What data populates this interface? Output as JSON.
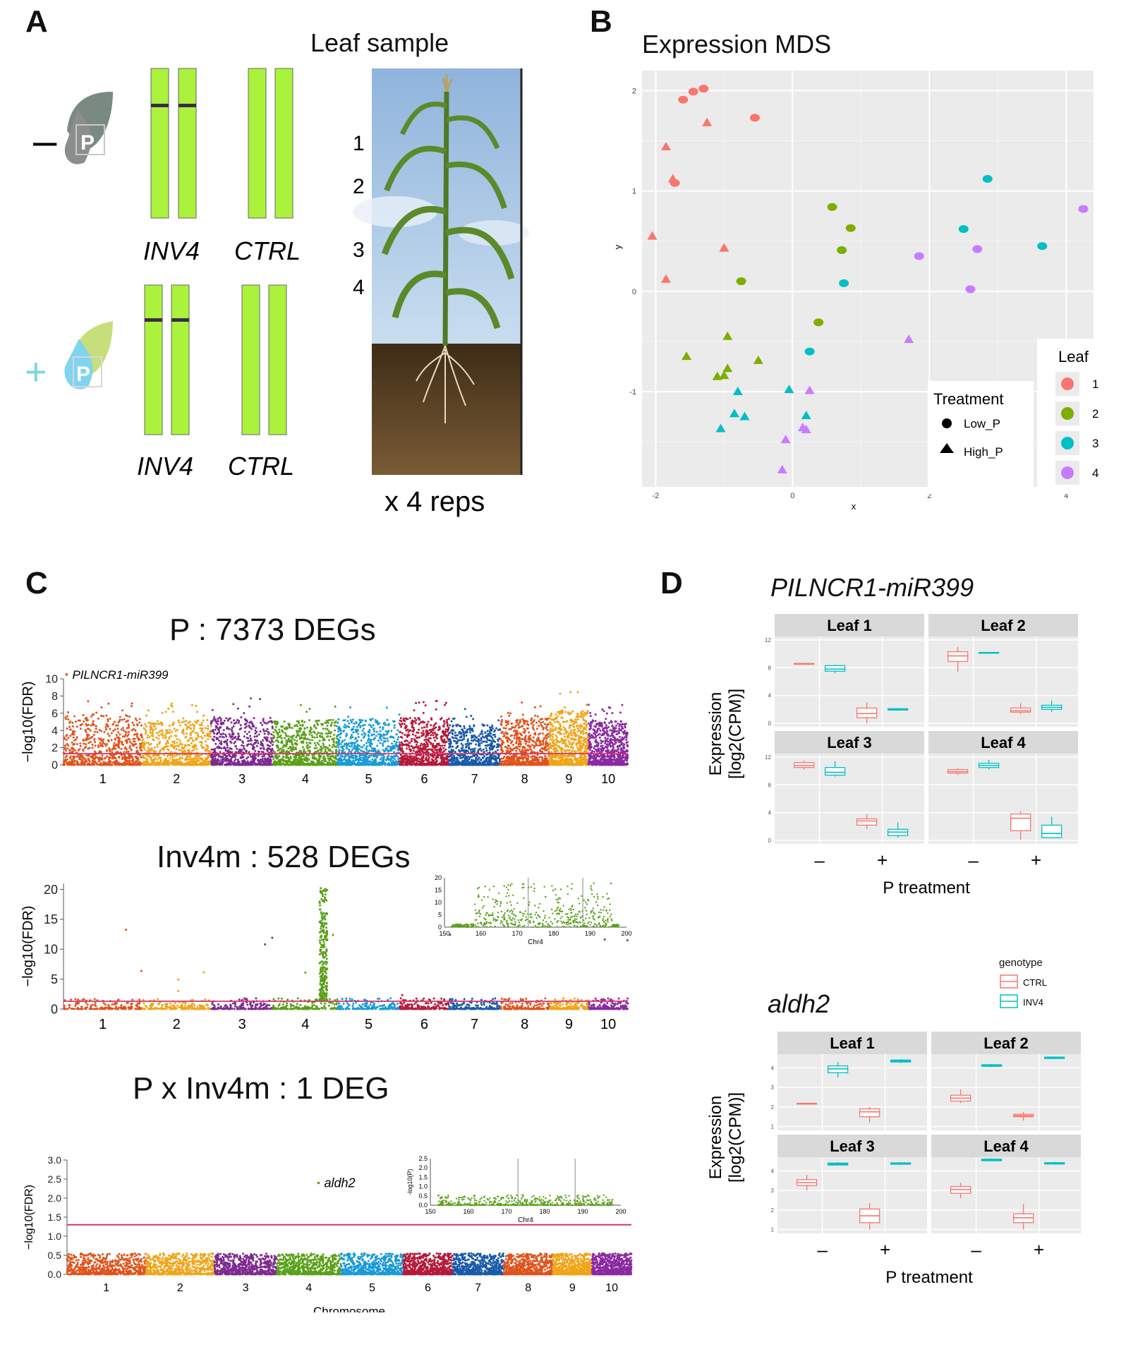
{
  "panelA": {
    "letter": "A",
    "title": "Leaf sample",
    "minus_sign": "–",
    "plus_sign": "+",
    "p_symbol": "P",
    "genotypes_top": [
      "INV4",
      "CTRL"
    ],
    "genotypes_bottom": [
      "INV4",
      "CTRL"
    ],
    "leaf_numbers": [
      "1",
      "2",
      "3",
      "4"
    ],
    "reps": "x 4 reps",
    "colors": {
      "chrom": "#aaf23c",
      "band": "#3a2d4a",
      "sky": "#a9c8e6",
      "soil": "#5a4326",
      "plant": "#4f7a25"
    }
  },
  "panelB": {
    "letter": "B",
    "title": "Expression MDS",
    "xlabel": "x",
    "ylabel": "y",
    "treatment_legend": {
      "title": "Treatment",
      "items": [
        "Low_P",
        "High_P"
      ]
    },
    "leaf_legend": {
      "title": "Leaf",
      "items": [
        "1",
        "2",
        "3",
        "4"
      ]
    },
    "leaf_colors": [
      "#f8766d",
      "#7cae00",
      "#00bfc4",
      "#c77cff"
    ]
  },
  "panelC": {
    "letter": "C",
    "plots": [
      {
        "title": "P :  7373 DEGs",
        "ylabel": "−log10(FDR)",
        "annotation": "PILNCR1-miR399"
      },
      {
        "title": "Inv4m : 528 DEGs",
        "ylabel": "−log10(FDR)",
        "inset_xlabel": "Chr4"
      },
      {
        "title": "P x Inv4m : 1 DEG",
        "ylabel": "−log10(FDR)",
        "annotation": "aldh2",
        "inset_xlabel": "Chr4",
        "inset_ylabel": "-log10(P)",
        "xlabel": "Chromosome"
      }
    ],
    "chrom_colors": [
      "#e0531c",
      "#f0a418",
      "#7d2a8e",
      "#5aa01a",
      "#1a9ad6",
      "#b41a3a",
      "#1a5aa8",
      "#e0531c",
      "#f0a418",
      "#8a2aa0"
    ],
    "threshold_color": "#d6336c"
  },
  "panelD": {
    "letter": "D",
    "gene1": "PILNCR1-miR399",
    "gene2": "aldh2",
    "facets": [
      "Leaf 1",
      "Leaf 2",
      "Leaf 3",
      "Leaf 4"
    ],
    "ylabel_line1": "Expression",
    "ylabel_line2": "[log2(CPM)]",
    "xlabel": "P treatment",
    "x_ticks": [
      "–",
      "+"
    ],
    "legend": {
      "title": "genotype",
      "items": [
        "CTRL",
        "INV4"
      ]
    },
    "genotype_colors": [
      "#f8766d",
      "#00bfc4"
    ]
  },
  "chart_data": [
    {
      "type": "scatter",
      "title": "Expression MDS",
      "xlabel": "x",
      "ylabel": "y",
      "xlim": [
        -2.2,
        4.4
      ],
      "ylim": [
        -1.95,
        2.2
      ],
      "x_ticks": [
        -2,
        0,
        2,
        4
      ],
      "y_ticks": [
        -1,
        0,
        1,
        2
      ],
      "grid": true,
      "legend": "right",
      "series": [
        {
          "name": "1",
          "treatment": "Low_P",
          "x": [
            -1.6,
            -1.45,
            -1.3,
            -0.55,
            -1.72
          ],
          "y": [
            1.91,
            1.99,
            2.02,
            1.73,
            1.08
          ]
        },
        {
          "name": "1",
          "treatment": "High_P",
          "x": [
            -1.25,
            -1.85,
            -1.75,
            -2.05,
            -1.0,
            -1.85
          ],
          "y": [
            1.68,
            1.44,
            1.12,
            0.55,
            0.43,
            0.12
          ]
        },
        {
          "name": "2",
          "treatment": "Low_P",
          "x": [
            0.58,
            0.85,
            0.72,
            -0.75,
            0.38
          ],
          "y": [
            0.84,
            0.63,
            0.41,
            0.1,
            -0.31
          ]
        },
        {
          "name": "2",
          "treatment": "High_P",
          "x": [
            -0.95,
            -1.55,
            -0.5,
            -0.95,
            -1.1,
            -1.0
          ],
          "y": [
            -0.45,
            -0.65,
            -0.69,
            -0.77,
            -0.85,
            -0.84
          ]
        },
        {
          "name": "3",
          "treatment": "Low_P",
          "x": [
            2.85,
            2.5,
            3.65,
            0.75,
            0.25
          ],
          "y": [
            1.12,
            0.62,
            0.45,
            0.08,
            -0.6
          ]
        },
        {
          "name": "3",
          "treatment": "High_P",
          "x": [
            -0.8,
            -0.05,
            -1.05,
            0.2,
            -0.85,
            -0.7
          ],
          "y": [
            -1.0,
            -0.98,
            -1.37,
            -1.24,
            -1.22,
            -1.25
          ]
        },
        {
          "name": "4",
          "treatment": "Low_P",
          "x": [
            4.25,
            2.7,
            1.85,
            2.6
          ],
          "y": [
            0.82,
            0.42,
            0.35,
            0.02
          ]
        },
        {
          "name": "4",
          "treatment": "High_P",
          "x": [
            1.7,
            0.25,
            0.15,
            0.2,
            -0.1,
            -0.15
          ],
          "y": [
            -0.48,
            -0.99,
            -1.36,
            -1.38,
            -1.48,
            -1.78
          ]
        }
      ]
    },
    {
      "type": "scatter",
      "title": "P :  7373 DEGs",
      "ylabel": "−log10(FDR)",
      "categories": [
        "1",
        "2",
        "3",
        "4",
        "5",
        "6",
        "7",
        "8",
        "9",
        "10"
      ],
      "ylim": [
        0,
        10
      ],
      "y_ticks": [
        0,
        2,
        4,
        6,
        8,
        10
      ],
      "threshold": 1.3,
      "max_per_chrom": [
        8.1,
        7.2,
        7.8,
        7.3,
        7.4,
        7.6,
        6.5,
        7.5,
        8.7,
        7.1
      ],
      "annotations": [
        {
          "label": "PILNCR1-miR399",
          "chrom": "1",
          "y": 10.5
        }
      ]
    },
    {
      "type": "scatter",
      "title": "Inv4m : 528 DEGs",
      "ylabel": "−log10(FDR)",
      "categories": [
        "1",
        "2",
        "3",
        "4",
        "5",
        "6",
        "7",
        "8",
        "9",
        "10"
      ],
      "ylim": [
        0,
        21
      ],
      "y_ticks": [
        0,
        5,
        10,
        15,
        20
      ],
      "threshold": 1.3,
      "peak": {
        "chrom": "4",
        "max": 20.5
      },
      "inset": {
        "xlabel": "Chr4",
        "xlim": [
          150,
          200
        ],
        "x_ticks": [
          150,
          160,
          170,
          180,
          190,
          200
        ],
        "ylim": [
          0,
          20
        ],
        "y_ticks": [
          0,
          5,
          10,
          15,
          20
        ],
        "vlines": [
          173,
          188
        ]
      }
    },
    {
      "type": "scatter",
      "title": "P x Inv4m : 1 DEG",
      "xlabel": "Chromosome",
      "ylabel": "−log10(FDR)",
      "categories": [
        "1",
        "2",
        "3",
        "4",
        "5",
        "6",
        "7",
        "8",
        "9",
        "10"
      ],
      "ylim": [
        0,
        3.0
      ],
      "y_ticks": [
        0.0,
        0.5,
        1.0,
        1.5,
        2.0,
        2.5,
        3.0
      ],
      "threshold": 1.3,
      "annotations": [
        {
          "label": "aldh2",
          "chrom": "4",
          "y": 2.4
        }
      ],
      "inset": {
        "xlabel": "Chr4",
        "ylabel": "-log10(P)",
        "xlim": [
          150,
          200
        ],
        "x_ticks": [
          150,
          160,
          170,
          180,
          190,
          200
        ],
        "ylim": [
          0,
          2.5
        ],
        "y_ticks": [
          0.0,
          0.5,
          1.0,
          1.5,
          2.0,
          2.5
        ],
        "vlines": [
          173,
          188
        ]
      }
    },
    {
      "type": "box",
      "title": "PILNCR1-miR399",
      "xlabel": "P treatment",
      "ylabel": "Expression [log2(CPM)]",
      "categories": [
        "–",
        "+"
      ],
      "ylim": [
        -0.5,
        12.5
      ],
      "y_ticks": [
        0,
        4,
        8,
        12
      ],
      "facets": [
        {
          "name": "Leaf 1",
          "CTRL": [
            [
              8.6,
              8.6,
              8.6,
              8.6,
              8.6
            ],
            [
              0,
              0.8,
              1.4,
              2.2,
              3.0
            ]
          ],
          "INV4": [
            [
              7.2,
              7.5,
              7.8,
              8.3,
              8.4
            ],
            [
              1.8,
              1.9,
              2.0,
              2.1,
              2.2
            ]
          ]
        },
        {
          "name": "Leaf 2",
          "CTRL": [
            [
              7.4,
              8.9,
              9.7,
              10.3,
              11.0
            ],
            [
              1.3,
              1.6,
              1.8,
              2.2,
              2.9
            ]
          ],
          "INV4": [
            [
              10.0,
              10.1,
              10.1,
              10.2,
              10.2
            ],
            [
              1.6,
              2.0,
              2.3,
              2.6,
              3.3
            ]
          ]
        },
        {
          "name": "Leaf 3",
          "CTRL": [
            [
              10.2,
              10.5,
              10.8,
              11.2,
              11.5
            ],
            [
              1.6,
              2.2,
              2.8,
              3.1,
              3.8
            ]
          ],
          "INV4": [
            [
              9.2,
              9.4,
              9.8,
              10.5,
              11.4
            ],
            [
              0.4,
              0.7,
              1.2,
              1.6,
              2.6
            ]
          ]
        },
        {
          "name": "Leaf 4",
          "CTRL": [
            [
              9.4,
              9.7,
              9.9,
              10.2,
              10.4
            ],
            [
              0.1,
              1.4,
              3.2,
              3.8,
              4.2
            ]
          ],
          "INV4": [
            [
              10.2,
              10.5,
              10.8,
              11.1,
              11.6
            ],
            [
              0.3,
              0.4,
              1.0,
              2.2,
              3.4
            ]
          ]
        }
      ]
    },
    {
      "type": "box",
      "title": "aldh2",
      "xlabel": "P treatment",
      "ylabel": "Expression [log2(CPM)]",
      "categories": [
        "–",
        "+"
      ],
      "ylim": [
        0.8,
        4.7
      ],
      "y_ticks": [
        1,
        2,
        3,
        4
      ],
      "facets": [
        {
          "name": "Leaf 1",
          "CTRL": [
            [
              2.18,
              2.18,
              2.18,
              2.18,
              2.18
            ],
            [
              1.2,
              1.5,
              1.75,
              1.9,
              2.0
            ]
          ],
          "INV4": [
            [
              3.5,
              3.75,
              3.95,
              4.1,
              4.3
            ],
            [
              4.25,
              4.3,
              4.35,
              4.4,
              4.45
            ]
          ]
        },
        {
          "name": "Leaf 2",
          "CTRL": [
            [
              2.2,
              2.3,
              2.45,
              2.6,
              2.9
            ],
            [
              1.3,
              1.5,
              1.55,
              1.62,
              1.75
            ]
          ],
          "INV4": [
            [
              4.05,
              4.08,
              4.12,
              4.16,
              4.2
            ],
            [
              4.45,
              4.48,
              4.52,
              4.55,
              4.58
            ]
          ]
        },
        {
          "name": "Leaf 3",
          "CTRL": [
            [
              3.0,
              3.25,
              3.4,
              3.55,
              3.8
            ],
            [
              1.0,
              1.35,
              1.7,
              2.05,
              2.35
            ]
          ],
          "INV4": [
            [
              4.28,
              4.3,
              4.35,
              4.4,
              4.45
            ],
            [
              4.32,
              4.34,
              4.37,
              4.41,
              4.45
            ]
          ]
        },
        {
          "name": "Leaf 4",
          "CTRL": [
            [
              2.6,
              2.85,
              3.05,
              3.2,
              3.4
            ],
            [
              1.0,
              1.35,
              1.6,
              1.8,
              2.3
            ]
          ],
          "INV4": [
            [
              4.5,
              4.52,
              4.55,
              4.6,
              4.64
            ],
            [
              4.32,
              4.35,
              4.38,
              4.42,
              4.47
            ]
          ]
        }
      ]
    }
  ]
}
